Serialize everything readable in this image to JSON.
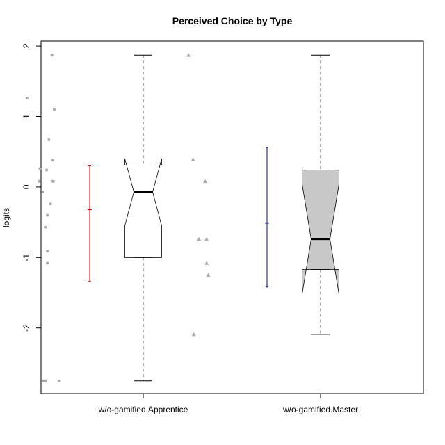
{
  "chart_data": {
    "type": "box",
    "title": "Perceived Choice by Type",
    "xlabel": "",
    "ylabel": "logits",
    "ylim": [
      -2.93,
      2.07
    ],
    "yticks": [
      -2,
      -1,
      0,
      1,
      2
    ],
    "ytick_labels": [
      "-2",
      "-1",
      "0",
      "1",
      "2"
    ],
    "categories": [
      "w/o-gamified.Apprentice",
      "w/o-gamified.Master"
    ],
    "boxes": [
      {
        "name": "w/o-gamified.Apprentice",
        "whisker_low": -2.75,
        "q1": -1.0,
        "median": -0.07,
        "q3": 0.31,
        "whisker_high": 1.87,
        "notch_low": -0.55,
        "notch_high": 0.4,
        "fill": "#ffffff"
      },
      {
        "name": "w/o-gamified.Master",
        "whisker_low": -2.09,
        "q1": -1.17,
        "median": -0.74,
        "q3": 0.24,
        "whisker_high": 1.87,
        "notch_low": -1.52,
        "notch_high": 0.04,
        "fill": "#c8c8c8"
      }
    ],
    "points": [
      {
        "group": "w/o-gamified.Apprentice",
        "marker": "circle",
        "color": "#aaaaaa",
        "x": [
          1.14,
          0.81,
          1.17,
          1.1,
          1.15,
          0.98,
          1.07,
          1.15,
          1.16,
          0.97,
          1.02,
          1.12,
          1.08,
          1.06,
          1.08,
          1.08,
          1.02,
          1.05,
          1.06,
          1.24
        ],
        "y": [
          1.87,
          1.26,
          1.1,
          0.67,
          0.38,
          0.26,
          0.24,
          0.08,
          0.08,
          0.08,
          -0.07,
          -0.24,
          -0.4,
          -0.57,
          -0.91,
          -1.08,
          -2.75,
          -2.75,
          -2.75,
          -2.75
        ]
      },
      {
        "group": "w/o-gamified.Master",
        "marker": "triangle",
        "color": "#aaaaaa",
        "x": [
          0.6,
          0.66,
          0.82,
          0.74,
          0.84,
          0.84,
          0.86,
          0.67
        ],
        "y": [
          1.87,
          0.39,
          0.08,
          -0.74,
          -0.74,
          -1.08,
          -1.25,
          -2.09
        ]
      }
    ],
    "error_bars": [
      {
        "group": "w/o-gamified.Apprentice",
        "mean": -0.32,
        "low": -1.34,
        "high": 0.3,
        "color": "#dd0000"
      },
      {
        "group": "w/o-gamified.Master",
        "mean": -0.51,
        "low": -1.42,
        "high": 0.56,
        "color": "#0000aa"
      }
    ],
    "grid": false,
    "legend": "none"
  }
}
